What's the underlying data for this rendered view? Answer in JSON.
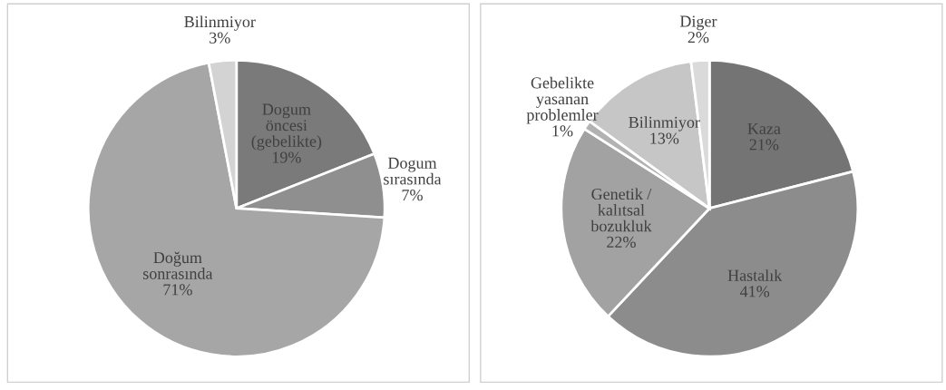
{
  "chart_data": [
    {
      "type": "pie",
      "categories": [
        "Dogum öncesi (gebelikte)",
        "Dogum sırasında",
        "Doğum sonrasında",
        "Bilinmiyor"
      ],
      "values": [
        19,
        7,
        71,
        3
      ],
      "value_labels": [
        "19%",
        "7%",
        "71%",
        "3%"
      ],
      "colors": [
        "#7a7a7a",
        "#8f8f8f",
        "#a6a6a6",
        "#d3d3d3"
      ],
      "legend": false
    },
    {
      "type": "pie",
      "categories": [
        "Kaza",
        "Hastalık",
        "Genetik / kalıtsal bozukluk",
        "Gebelikte yasanan problemler",
        "Bilinmiyor",
        "Diger"
      ],
      "values": [
        21,
        41,
        22,
        1,
        13,
        2
      ],
      "value_labels": [
        "21%",
        "41%",
        "22%",
        "1%",
        "13%",
        "2%"
      ],
      "colors": [
        "#747474",
        "#8c8c8c",
        "#a2a2a2",
        "#b2b2b2",
        "#c6c6c6",
        "#dadada"
      ],
      "legend": false
    }
  ]
}
